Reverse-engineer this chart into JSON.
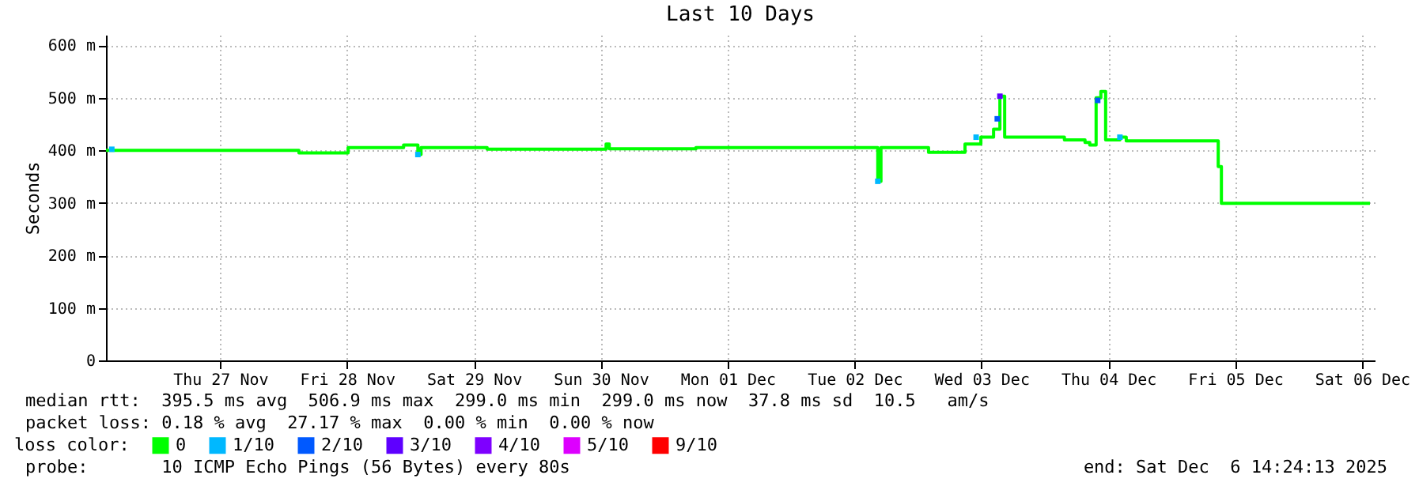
{
  "chart_data": {
    "type": "step",
    "title": "Last 10 Days",
    "ylabel": "Seconds",
    "legend_title": "loss color:",
    "legend": "bottom",
    "x": [
      "2025-11-26T14:24",
      "2025-11-28T02:54",
      "2025-11-28T12:12",
      "2025-11-28T22:42",
      "2025-11-29T01:24",
      "2025-11-29T02:00",
      "2025-11-29T14:30",
      "2025-11-30T13:00",
      "2025-11-30T13:36",
      "2025-12-01T06:00",
      "2025-12-02T16:06",
      "2025-12-02T16:24",
      "2025-12-02T17:00",
      "2025-12-03T02:00",
      "2025-12-03T08:00",
      "2025-12-03T08:54",
      "2025-12-03T11:54",
      "2025-12-03T14:18",
      "2025-12-03T15:30",
      "2025-12-03T16:24",
      "2025-12-03T23:54",
      "2025-12-04T03:42",
      "2025-12-04T07:36",
      "2025-12-04T08:30",
      "2025-12-04T09:42",
      "2025-12-04T10:36",
      "2025-12-04T11:30",
      "2025-12-04T14:12",
      "2025-12-04T15:24",
      "2025-12-05T08:12",
      "2025-12-05T08:48",
      "2025-12-05T09:24",
      "2025-12-06T13:30"
    ],
    "series": [
      {
        "name": "0",
        "color": "#00ff00",
        "values": [
          400,
          395,
          405,
          410,
          392,
          405,
          402,
          412,
          403,
          405,
          405,
          341,
          405,
          396,
          396,
          412,
          425,
          440,
          503,
          425,
          425,
          420,
          415,
          410,
          500,
          512,
          420,
          425,
          418,
          418,
          369,
          299,
          299
        ]
      },
      {
        "name": "1/10",
        "color": "#00b8ff",
        "type": "scatter",
        "x": [
          "2025-11-26T15:30",
          "2025-11-29T01:24",
          "2025-12-02T16:24",
          "2025-12-03T11:00",
          "2025-12-04T14:12"
        ],
        "values": [
          402,
          392,
          341,
          425,
          425
        ]
      },
      {
        "name": "2/10",
        "color": "#0059ff",
        "type": "scatter",
        "x": [
          "2025-12-03T15:00",
          "2025-12-04T10:00"
        ],
        "values": [
          460,
          495
        ]
      },
      {
        "name": "3/10",
        "color": "#5e00ff",
        "type": "scatter",
        "x": [
          "2025-12-03T15:30"
        ],
        "values": [
          503
        ]
      },
      {
        "name": "4/10",
        "color": "#7e00ff",
        "type": "scatter",
        "x": [
          null
        ],
        "values": [
          null
        ]
      },
      {
        "name": "5/10",
        "color": "#dd00ff",
        "type": "scatter",
        "x": [
          null
        ],
        "values": [
          null
        ]
      },
      {
        "name": "9/10",
        "color": "#ff0000",
        "type": "scatter",
        "x": [
          null
        ],
        "values": [
          null
        ]
      }
    ],
    "xlim": [
      "2025-11-26T14:24",
      "2025-12-06T14:24"
    ],
    "xticks": [
      {
        "value": "2025-11-27T12:00",
        "label": "Thu 27 Nov"
      },
      {
        "value": "2025-11-28T12:00",
        "label": "Fri 28 Nov"
      },
      {
        "value": "2025-11-29T12:00",
        "label": "Sat 29 Nov"
      },
      {
        "value": "2025-11-30T12:00",
        "label": "Sun 30 Nov"
      },
      {
        "value": "2025-12-01T12:00",
        "label": "Mon 01 Dec"
      },
      {
        "value": "2025-12-02T12:00",
        "label": "Tue 02 Dec"
      },
      {
        "value": "2025-12-03T12:00",
        "label": "Wed 03 Dec"
      },
      {
        "value": "2025-12-04T12:00",
        "label": "Thu 04 Dec"
      },
      {
        "value": "2025-12-05T12:00",
        "label": "Fri 05 Dec"
      },
      {
        "value": "2025-12-06T12:00",
        "label": "Sat 06 Dec"
      }
    ],
    "ylim": [
      0,
      620
    ],
    "yticks": [
      0,
      {
        "value": 100,
        "label": "100 m"
      },
      {
        "value": 200,
        "label": "200 m"
      },
      {
        "value": 300,
        "label": "300 m"
      },
      {
        "value": 400,
        "label": "400 m"
      },
      {
        "value": 500,
        "label": "500 m"
      },
      {
        "value": 600,
        "label": "600 m"
      }
    ],
    "grid": true,
    "annotations": [
      "median rtt:  395.5 ms avg  506.9 ms max  299.0 ms min  299.0 ms now  37.8 ms sd  10.5   am/s",
      "packet loss: 0.18 % avg  27.17 % max  0.00 % min  0.00 % now",
      "probe:       10 ICMP Echo Pings (56 Bytes) every 80s",
      "end: Sat Dec  6 14:24:13 2025"
    ]
  }
}
